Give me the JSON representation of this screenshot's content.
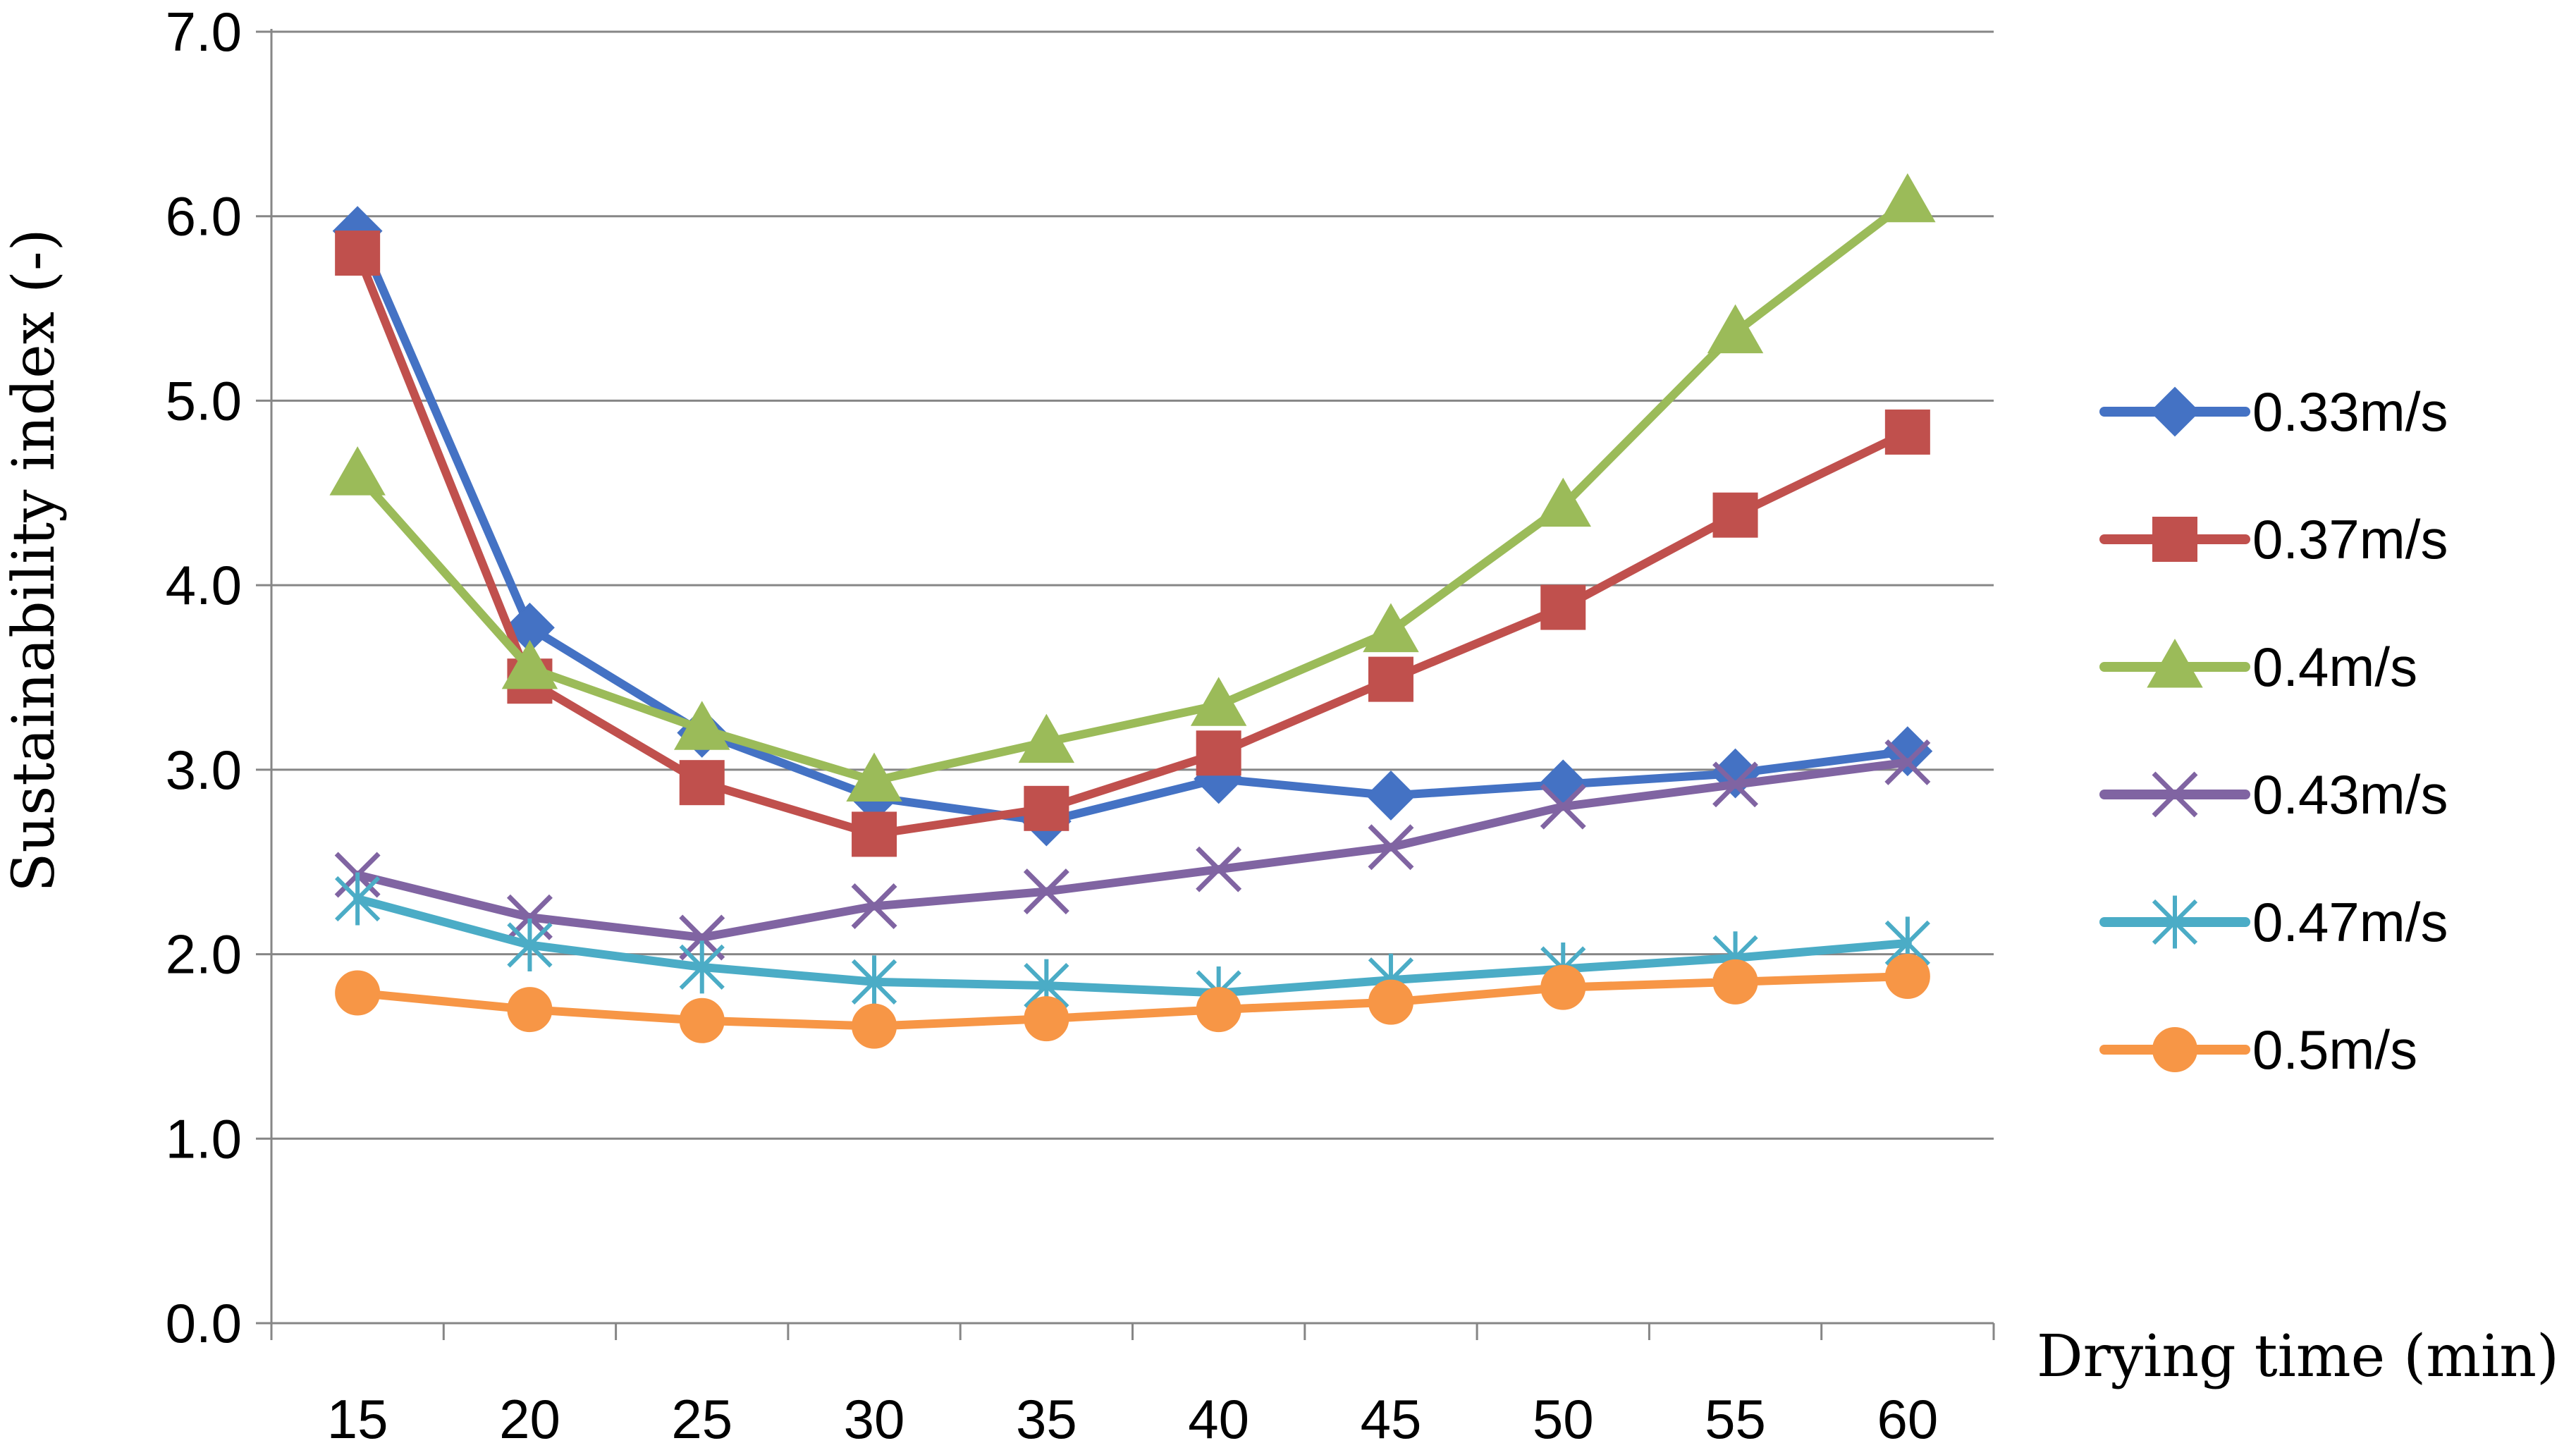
{
  "chart_data": {
    "type": "line",
    "title": "",
    "xlabel": "Drying time (min)",
    "ylabel": "Sustainability index (-)",
    "categories": [
      "15",
      "20",
      "25",
      "30",
      "35",
      "40",
      "45",
      "50",
      "55",
      "60"
    ],
    "ylim": [
      0,
      7
    ],
    "yticks": [
      "0.0",
      "1.0",
      "2.0",
      "3.0",
      "4.0",
      "5.0",
      "6.0",
      "7.0"
    ],
    "grid": true,
    "legend_position": "right",
    "series": [
      {
        "name": "0.33m/s",
        "color": "#4472C4",
        "marker": "diamond",
        "values": [
          5.92,
          3.77,
          3.2,
          2.85,
          2.72,
          2.95,
          2.86,
          2.92,
          2.98,
          3.1
        ]
      },
      {
        "name": "0.37m/s",
        "color": "#C0504D",
        "marker": "square",
        "values": [
          5.8,
          3.48,
          2.93,
          2.65,
          2.79,
          3.09,
          3.49,
          3.88,
          4.38,
          4.83
        ]
      },
      {
        "name": "0.4m/s",
        "color": "#9BBB59",
        "marker": "triangle",
        "values": [
          4.6,
          3.55,
          3.22,
          2.94,
          3.15,
          3.35,
          3.75,
          4.43,
          5.37,
          6.08
        ]
      },
      {
        "name": "0.43m/s",
        "color": "#8064A2",
        "marker": "x",
        "values": [
          2.43,
          2.2,
          2.09,
          2.26,
          2.34,
          2.46,
          2.58,
          2.8,
          2.92,
          3.04
        ]
      },
      {
        "name": "0.47m/s",
        "color": "#4BACC6",
        "marker": "star",
        "values": [
          2.3,
          2.05,
          1.93,
          1.85,
          1.83,
          1.79,
          1.86,
          1.92,
          1.98,
          2.06
        ]
      },
      {
        "name": "0.5m/s",
        "color": "#F79646",
        "marker": "circle",
        "values": [
          1.79,
          1.7,
          1.64,
          1.61,
          1.65,
          1.7,
          1.74,
          1.82,
          1.85,
          1.88
        ]
      }
    ]
  }
}
